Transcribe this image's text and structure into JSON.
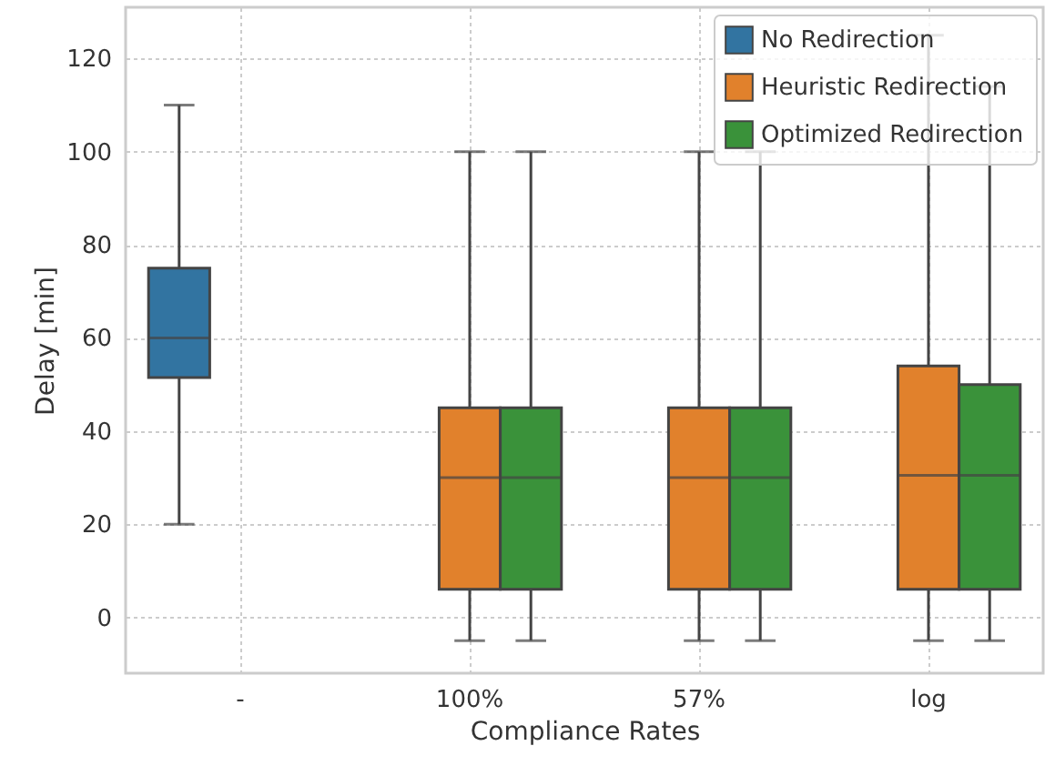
{
  "chart_data": {
    "type": "box",
    "xlabel": "Compliance Rates",
    "ylabel": "Delay [min]",
    "categories": [
      "-",
      "100%",
      "57%",
      "log"
    ],
    "series": [
      {
        "name": "No Redirection",
        "color": "#3274a1",
        "boxes": [
          {
            "low": 20,
            "q1": 51.5,
            "median": 60,
            "q3": 75,
            "high": 110
          },
          null,
          null,
          null
        ]
      },
      {
        "name": "Heuristic Redirection",
        "color": "#e1812c",
        "boxes": [
          null,
          {
            "low": -5,
            "q1": 6,
            "median": 30,
            "q3": 45,
            "high": 100
          },
          {
            "low": -5,
            "q1": 6,
            "median": 30,
            "q3": 45,
            "high": 100
          },
          {
            "low": -5,
            "q1": 6,
            "median": 30.5,
            "q3": 54,
            "high": 125
          }
        ]
      },
      {
        "name": "Optimized Redirection",
        "color": "#3a923a",
        "boxes": [
          null,
          {
            "low": -5,
            "q1": 6,
            "median": 30,
            "q3": 45,
            "high": 100
          },
          {
            "low": -5,
            "q1": 6,
            "median": 30,
            "q3": 45,
            "high": 100
          },
          {
            "low": -5,
            "q1": 6,
            "median": 30.5,
            "q3": 50,
            "high": 114
          }
        ]
      }
    ],
    "ylim": [
      -12,
      131
    ],
    "yticks": [
      0,
      20,
      40,
      60,
      80,
      100,
      120
    ],
    "grid": true,
    "legend": "top right"
  }
}
